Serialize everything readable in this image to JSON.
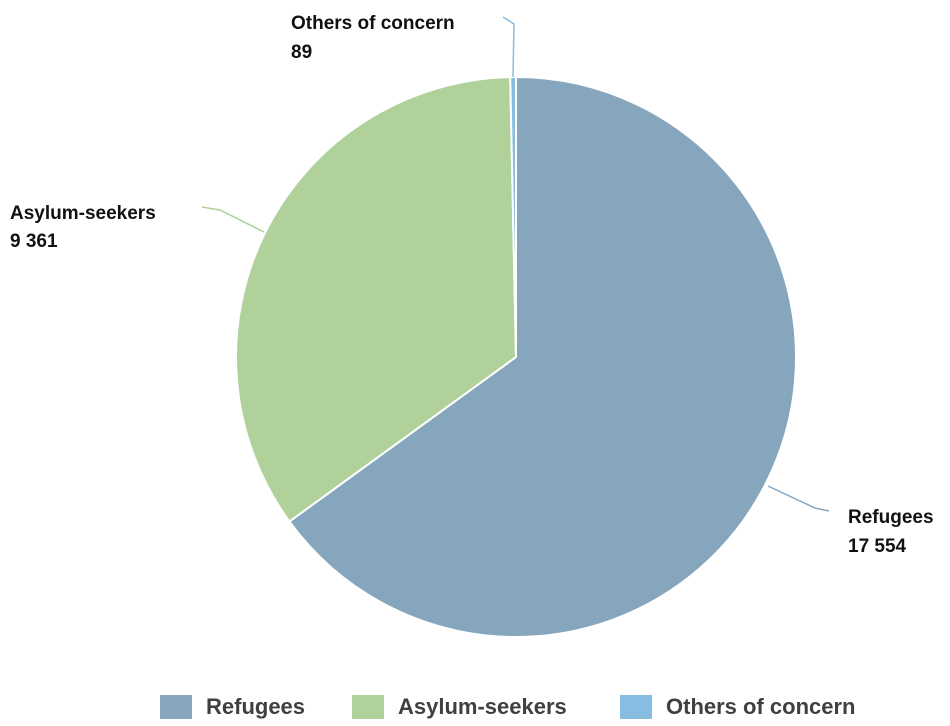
{
  "chart_data": {
    "type": "pie",
    "slices": [
      {
        "label": "Refugees",
        "value": 17554,
        "value_text": "17 554",
        "color": "#85a6bd"
      },
      {
        "label": "Asylum-seekers",
        "value": 9361,
        "value_text": "9 361",
        "color": "#b0d29a"
      },
      {
        "label": "Others of concern",
        "value": 89,
        "value_text": "89",
        "color": "#86bde0"
      }
    ],
    "legend_position": "bottom"
  }
}
